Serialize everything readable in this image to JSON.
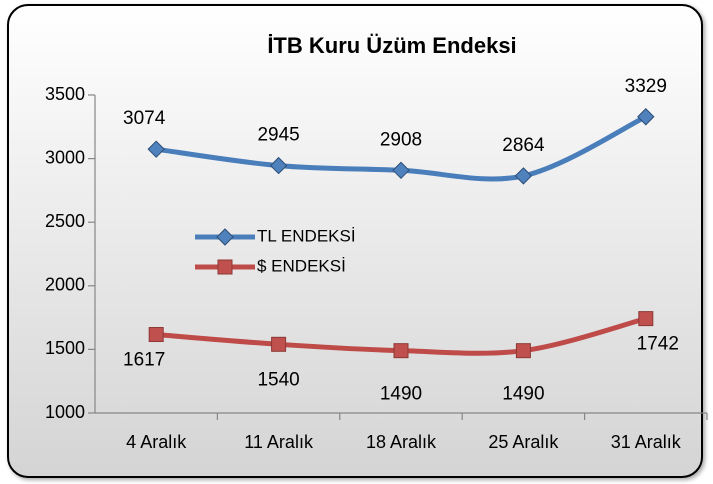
{
  "chart_data": {
    "type": "line",
    "title": "İTB Kuru Üzüm Endeksi",
    "categories": [
      "4 Aralık",
      "11 Aralık",
      "18 Aralık",
      "25 Aralık",
      "31 Aralık"
    ],
    "series": [
      {
        "name": "TL ENDEKSİ",
        "color": "#4a7ebb",
        "marker_color": "#4f81bd",
        "marker": "diamond",
        "values": [
          3074,
          2945,
          2908,
          2864,
          3329
        ]
      },
      {
        "name": "$ ENDEKSİ",
        "color": "#be4b48",
        "marker_color": "#c0504d",
        "marker": "square",
        "values": [
          1617,
          1540,
          1490,
          1490,
          1742
        ]
      }
    ],
    "ylim": [
      1000,
      3500
    ],
    "yticks": [
      1000,
      1500,
      2000,
      2500,
      3000,
      3500
    ],
    "grid": false,
    "legend": "center-left"
  }
}
